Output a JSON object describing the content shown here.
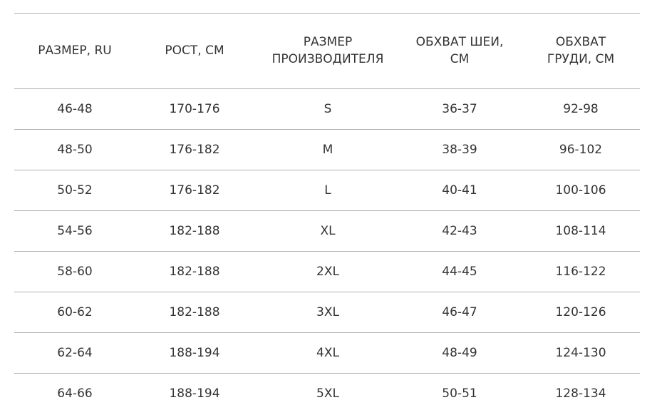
{
  "table": {
    "headers": [
      [
        "РАЗМЕР, RU"
      ],
      [
        "РОСТ, СМ"
      ],
      [
        "РАЗМЕР",
        "ПРОИЗВОДИТЕЛЯ"
      ],
      [
        "ОБХВАТ ШЕИ,",
        "СМ"
      ],
      [
        "ОБХВАТ",
        "ГРУДИ, СМ"
      ]
    ],
    "rows": [
      [
        "46-48",
        "170-176",
        "S",
        "36-37",
        "92-98"
      ],
      [
        "48-50",
        "176-182",
        "M",
        "38-39",
        "96-102"
      ],
      [
        "50-52",
        "176-182",
        "L",
        "40-41",
        "100-106"
      ],
      [
        "54-56",
        "182-188",
        "XL",
        "42-43",
        "108-114"
      ],
      [
        "58-60",
        "182-188",
        "2XL",
        "44-45",
        "116-122"
      ],
      [
        "60-62",
        "182-188",
        "3XL",
        "46-47",
        "120-126"
      ],
      [
        "62-64",
        "188-194",
        "4XL",
        "48-49",
        "124-130"
      ],
      [
        "64-66",
        "188-194",
        "5XL",
        "50-51",
        "128-134"
      ]
    ]
  }
}
